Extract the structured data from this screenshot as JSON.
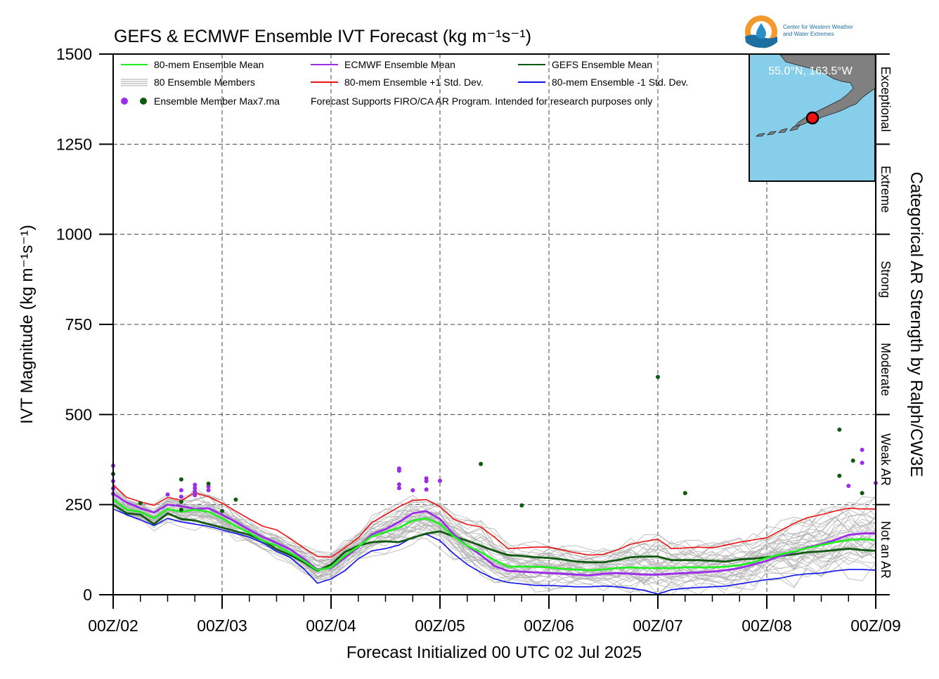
{
  "chart_data": {
    "type": "line",
    "title": "GEFS & ECMWF Ensemble IVT Forecast (kg m⁻¹s⁻¹)",
    "xlabel": "Forecast Initialized 00 UTC 02 Jul 2025",
    "ylabel": "IVT Magnitude (kg m⁻¹s⁻¹)",
    "right_label": "Categorical AR Strength by Ralph/CW3E",
    "ylim": [
      0,
      1500
    ],
    "xlim": [
      0,
      168
    ],
    "x_units": "forecast hours",
    "y_ticks": [
      0,
      250,
      500,
      750,
      1000,
      1250,
      1500
    ],
    "x_ticks": [
      {
        "x": 0,
        "label": "00Z/02"
      },
      {
        "x": 24,
        "label": "00Z/03"
      },
      {
        "x": 48,
        "label": "00Z/04"
      },
      {
        "x": 72,
        "label": "00Z/05"
      },
      {
        "x": 96,
        "label": "00Z/06"
      },
      {
        "x": 120,
        "label": "00Z/07"
      },
      {
        "x": 144,
        "label": "00Z/08"
      },
      {
        "x": 168,
        "label": "00Z/09"
      }
    ],
    "grid": true,
    "categories": [
      {
        "label": "Not an AR",
        "from": 0,
        "to": 250
      },
      {
        "label": "Weak AR",
        "from": 250,
        "to": 500
      },
      {
        "label": "Moderate",
        "from": 500,
        "to": 750
      },
      {
        "label": "Strong",
        "from": 750,
        "to": 1000
      },
      {
        "label": "Extreme",
        "from": 1000,
        "to": 1250
      },
      {
        "label": "Exceptional",
        "from": 1250,
        "to": 1500
      }
    ],
    "legend": {
      "placement": "top-left",
      "items": [
        {
          "label": "80-mem Ensemble Mean",
          "color": "#22ee22"
        },
        {
          "label": "ECMWF Ensemble Mean",
          "color": "#9b2ce8"
        },
        {
          "label": "GEFS Ensemble Mean",
          "color": "#0f5a0f"
        },
        {
          "label": "80 Ensemble Members",
          "color": "#aaaaaa"
        },
        {
          "label": "80-mem Ensemble +1 Std. Dev.",
          "color": "#ee1111"
        },
        {
          "label": "80-mem Ensemble -1 Std. Dev.",
          "color": "#1111ee"
        }
      ],
      "max_label": "Ensemble Member Max7.ma",
      "note": "Forecast Supports FIRO/CA AR Program. Intended for research purposes only"
    },
    "x": [
      0,
      3,
      6,
      9,
      12,
      15,
      18,
      21,
      24,
      27,
      30,
      33,
      36,
      39,
      42,
      45,
      48,
      51,
      54,
      57,
      60,
      63,
      66,
      69,
      72,
      75,
      78,
      81,
      84,
      87,
      90,
      93,
      96,
      99,
      102,
      105,
      108,
      111,
      114,
      117,
      120,
      123,
      126,
      129,
      132,
      135,
      138,
      141,
      144,
      147,
      150,
      153,
      156,
      159,
      162,
      165,
      168
    ],
    "series": [
      {
        "name": "80-mem Ensemble +1 Std. Dev.",
        "color": "#ee1111",
        "values": [
          305,
          270,
          258,
          248,
          270,
          262,
          282,
          272,
          254,
          232,
          210,
          190,
          180,
          156,
          130,
          106,
          104,
          130,
          158,
          200,
          222,
          244,
          262,
          264,
          244,
          210,
          195,
          188,
          160,
          128,
          130,
          132,
          132,
          124,
          116,
          110,
          112,
          124,
          140,
          148,
          154,
          128,
          130,
          132,
          130,
          138,
          146,
          152,
          158,
          178,
          198,
          214,
          222,
          232,
          240,
          238,
          238
        ]
      },
      {
        "name": "80-mem Ensemble Mean",
        "color": "#22ee22",
        "values": [
          265,
          236,
          230,
          212,
          238,
          230,
          236,
          230,
          212,
          190,
          172,
          150,
          136,
          116,
          94,
          68,
          76,
          108,
          134,
          162,
          174,
          186,
          206,
          212,
          196,
          162,
          136,
          118,
          96,
          78,
          78,
          78,
          76,
          72,
          70,
          68,
          70,
          74,
          76,
          74,
          74,
          74,
          76,
          76,
          76,
          78,
          82,
          90,
          102,
          112,
          120,
          130,
          138,
          146,
          152,
          154,
          152
        ]
      },
      {
        "name": "ECMWF Ensemble Mean",
        "color": "#9b2ce8",
        "values": [
          280,
          256,
          240,
          228,
          250,
          246,
          238,
          240,
          222,
          202,
          180,
          160,
          144,
          126,
          100,
          70,
          74,
          102,
          132,
          168,
          182,
          202,
          226,
          232,
          210,
          168,
          136,
          110,
          80,
          66,
          64,
          62,
          60,
          58,
          56,
          54,
          58,
          60,
          58,
          56,
          56,
          58,
          60,
          62,
          64,
          68,
          74,
          84,
          94,
          108,
          118,
          132,
          140,
          152,
          166,
          170,
          170
        ]
      },
      {
        "name": "GEFS Ensemble Mean",
        "color": "#0f5a0f",
        "values": [
          250,
          226,
          222,
          196,
          226,
          210,
          206,
          196,
          186,
          176,
          166,
          150,
          126,
          110,
          90,
          66,
          84,
          118,
          136,
          146,
          148,
          146,
          158,
          170,
          176,
          162,
          150,
          136,
          122,
          110,
          108,
          104,
          102,
          98,
          92,
          90,
          90,
          96,
          104,
          106,
          106,
          96,
          96,
          96,
          94,
          92,
          98,
          100,
          104,
          108,
          112,
          118,
          120,
          124,
          128,
          124,
          122
        ]
      },
      {
        "name": "80-mem Ensemble -1 Std. Dev.",
        "color": "#1111ee",
        "values": [
          238,
          222,
          208,
          192,
          212,
          202,
          196,
          190,
          180,
          170,
          160,
          144,
          120,
          104,
          72,
          32,
          44,
          66,
          100,
          122,
          128,
          138,
          160,
          168,
          150,
          114,
          84,
          62,
          44,
          34,
          30,
          26,
          26,
          24,
          22,
          22,
          24,
          22,
          18,
          12,
          2,
          14,
          18,
          20,
          22,
          24,
          30,
          36,
          42,
          46,
          54,
          58,
          60,
          66,
          70,
          70,
          68
        ]
      }
    ],
    "ensemble_max_points": {
      "ECMWF": {
        "color": "#9b2ce8",
        "points": [
          [
            0,
            358
          ],
          [
            0,
            315
          ],
          [
            0,
            295
          ],
          [
            0,
            280
          ],
          [
            12,
            278
          ],
          [
            15,
            290
          ],
          [
            15,
            272
          ],
          [
            18,
            305
          ],
          [
            18,
            296
          ],
          [
            18,
            286
          ],
          [
            18,
            276
          ],
          [
            21,
            300
          ],
          [
            21,
            290
          ],
          [
            63,
            350
          ],
          [
            63,
            344
          ],
          [
            63,
            306
          ],
          [
            63,
            296
          ],
          [
            66,
            290
          ],
          [
            69,
            323
          ],
          [
            69,
            315
          ],
          [
            69,
            292
          ],
          [
            72,
            316
          ],
          [
            162,
            302
          ],
          [
            165,
            402
          ],
          [
            165,
            366
          ],
          [
            168,
            310
          ]
        ]
      },
      "GEFS": {
        "color": "#0f5a0f",
        "points": [
          [
            0,
            335
          ],
          [
            6,
            254
          ],
          [
            15,
            320
          ],
          [
            15,
            258
          ],
          [
            15,
            236
          ],
          [
            21,
            308
          ],
          [
            24,
            232
          ],
          [
            27,
            264
          ],
          [
            81,
            363
          ],
          [
            90,
            248
          ],
          [
            120,
            604
          ],
          [
            126,
            282
          ],
          [
            160,
            458
          ],
          [
            160,
            330
          ],
          [
            163,
            372
          ],
          [
            165,
            282
          ]
        ]
      }
    },
    "map_inset": {
      "location": "55.0°N, 163.5°W",
      "ocean_color": "#87ceeb",
      "land_color": "#808080",
      "marker_color": "#ee1111"
    },
    "logo": {
      "line1": "Center for Western Weather",
      "line2": "and Water Extremes"
    }
  }
}
